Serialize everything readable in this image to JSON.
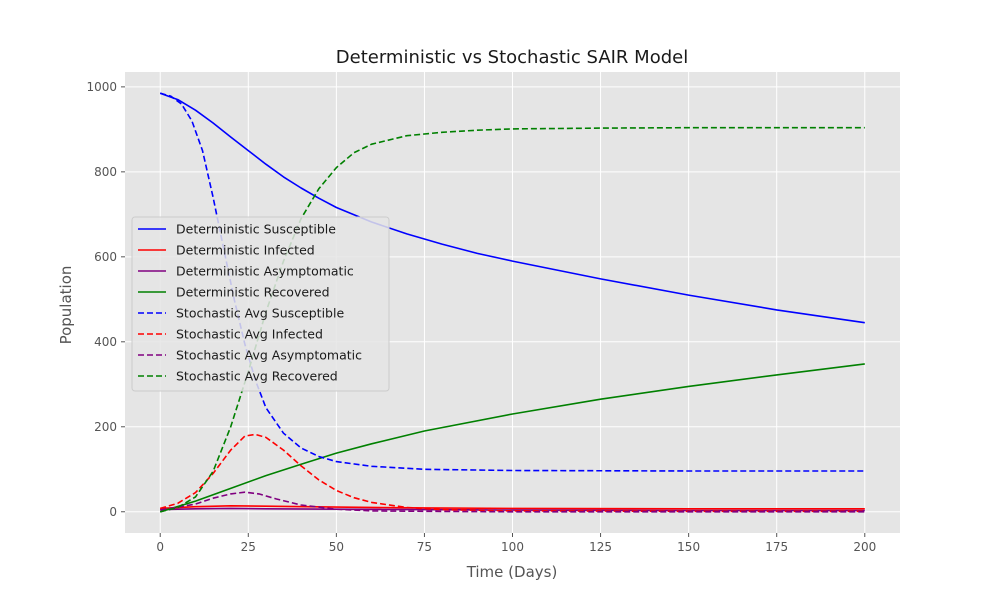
{
  "chart_data": {
    "type": "line",
    "title": "Deterministic vs Stochastic SAIR Model",
    "xlabel": "Time (Days)",
    "ylabel": "Population",
    "xlim": [
      -10,
      210
    ],
    "ylim": [
      -50,
      1035
    ],
    "xticks": [
      0,
      25,
      50,
      75,
      100,
      125,
      150,
      175,
      200
    ],
    "yticks": [
      0,
      200,
      400,
      600,
      800,
      1000
    ],
    "grid": true,
    "legend_position": "center-left",
    "series": [
      {
        "name": "Deterministic Susceptible",
        "color": "#0000ff",
        "style": "solid",
        "points": [
          [
            0,
            985
          ],
          [
            5,
            970
          ],
          [
            10,
            945
          ],
          [
            15,
            915
          ],
          [
            20,
            882
          ],
          [
            25,
            850
          ],
          [
            30,
            818
          ],
          [
            35,
            788
          ],
          [
            40,
            762
          ],
          [
            45,
            738
          ],
          [
            50,
            716
          ],
          [
            60,
            682
          ],
          [
            70,
            654
          ],
          [
            80,
            630
          ],
          [
            90,
            608
          ],
          [
            100,
            590
          ],
          [
            125,
            548
          ],
          [
            150,
            510
          ],
          [
            175,
            475
          ],
          [
            200,
            445
          ]
        ]
      },
      {
        "name": "Deterministic Infected",
        "color": "#ff0000",
        "style": "solid",
        "points": [
          [
            0,
            8
          ],
          [
            10,
            12
          ],
          [
            20,
            14
          ],
          [
            30,
            13
          ],
          [
            50,
            11
          ],
          [
            75,
            9
          ],
          [
            100,
            8
          ],
          [
            150,
            7
          ],
          [
            200,
            7
          ]
        ]
      },
      {
        "name": "Deterministic Asymptomatic",
        "color": "#800080",
        "style": "solid",
        "points": [
          [
            0,
            5
          ],
          [
            10,
            7
          ],
          [
            20,
            8
          ],
          [
            30,
            7
          ],
          [
            50,
            6
          ],
          [
            75,
            5
          ],
          [
            100,
            4
          ],
          [
            150,
            3
          ],
          [
            200,
            3
          ]
        ]
      },
      {
        "name": "Deterministic Recovered",
        "color": "#008000",
        "style": "solid",
        "points": [
          [
            0,
            0
          ],
          [
            10,
            25
          ],
          [
            20,
            55
          ],
          [
            30,
            85
          ],
          [
            40,
            112
          ],
          [
            50,
            138
          ],
          [
            60,
            160
          ],
          [
            75,
            190
          ],
          [
            100,
            230
          ],
          [
            125,
            265
          ],
          [
            150,
            295
          ],
          [
            175,
            322
          ],
          [
            200,
            348
          ]
        ]
      },
      {
        "name": "Stochastic Avg Susceptible",
        "color": "#0000ff",
        "style": "dashed",
        "points": [
          [
            0,
            985
          ],
          [
            3,
            978
          ],
          [
            6,
            960
          ],
          [
            9,
            920
          ],
          [
            12,
            850
          ],
          [
            15,
            740
          ],
          [
            18,
            620
          ],
          [
            21,
            500
          ],
          [
            24,
            395
          ],
          [
            27,
            310
          ],
          [
            30,
            245
          ],
          [
            35,
            185
          ],
          [
            40,
            150
          ],
          [
            45,
            130
          ],
          [
            50,
            118
          ],
          [
            60,
            107
          ],
          [
            75,
            100
          ],
          [
            100,
            97
          ],
          [
            150,
            96
          ],
          [
            200,
            96
          ]
        ]
      },
      {
        "name": "Stochastic Avg Infected",
        "color": "#ff0000",
        "style": "dashed",
        "points": [
          [
            0,
            8
          ],
          [
            5,
            20
          ],
          [
            10,
            45
          ],
          [
            15,
            90
          ],
          [
            20,
            145
          ],
          [
            24,
            178
          ],
          [
            27,
            182
          ],
          [
            30,
            175
          ],
          [
            35,
            145
          ],
          [
            40,
            108
          ],
          [
            45,
            75
          ],
          [
            50,
            50
          ],
          [
            55,
            33
          ],
          [
            60,
            22
          ],
          [
            70,
            10
          ],
          [
            80,
            5
          ],
          [
            100,
            2
          ],
          [
            150,
            1
          ],
          [
            200,
            1
          ]
        ]
      },
      {
        "name": "Stochastic Avg Asymptomatic",
        "color": "#800080",
        "style": "dashed",
        "points": [
          [
            0,
            4
          ],
          [
            10,
            18
          ],
          [
            15,
            32
          ],
          [
            20,
            42
          ],
          [
            24,
            46
          ],
          [
            28,
            42
          ],
          [
            33,
            30
          ],
          [
            40,
            16
          ],
          [
            50,
            6
          ],
          [
            60,
            2
          ],
          [
            75,
            1
          ],
          [
            100,
            0
          ],
          [
            200,
            0
          ]
        ]
      },
      {
        "name": "Stochastic Avg Recovered",
        "color": "#008000",
        "style": "dashed",
        "points": [
          [
            0,
            0
          ],
          [
            5,
            10
          ],
          [
            10,
            35
          ],
          [
            15,
            95
          ],
          [
            20,
            200
          ],
          [
            25,
            330
          ],
          [
            30,
            470
          ],
          [
            35,
            590
          ],
          [
            40,
            690
          ],
          [
            45,
            760
          ],
          [
            50,
            810
          ],
          [
            55,
            845
          ],
          [
            60,
            865
          ],
          [
            70,
            885
          ],
          [
            80,
            893
          ],
          [
            90,
            898
          ],
          [
            100,
            901
          ],
          [
            125,
            903
          ],
          [
            150,
            904
          ],
          [
            200,
            904
          ]
        ]
      }
    ]
  }
}
